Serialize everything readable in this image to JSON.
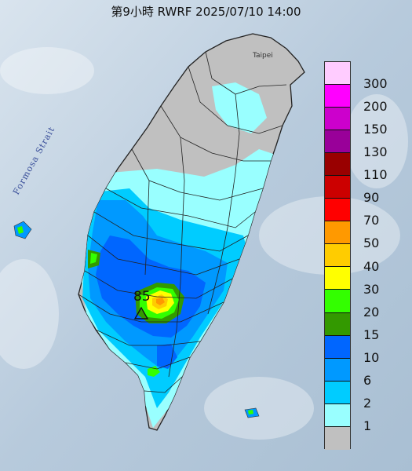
{
  "title": "第9小時  RWRF 2025/07/10 14:00",
  "map": {
    "sea_label": "Formosa Strait",
    "city_label": "Taipei",
    "max_marker": {
      "value": "85",
      "icon": "triangle-outline-icon"
    }
  },
  "legend": {
    "items": [
      {
        "label": "300",
        "color": "#ffccff"
      },
      {
        "label": "200",
        "color": "#ff00ff"
      },
      {
        "label": "150",
        "color": "#cc00cc"
      },
      {
        "label": "130",
        "color": "#990099"
      },
      {
        "label": "110",
        "color": "#990000"
      },
      {
        "label": "90",
        "color": "#cc0000"
      },
      {
        "label": "70",
        "color": "#ff0000"
      },
      {
        "label": "50",
        "color": "#ff9900"
      },
      {
        "label": "40",
        "color": "#ffcc00"
      },
      {
        "label": "30",
        "color": "#ffff00"
      },
      {
        "label": "20",
        "color": "#33ff00"
      },
      {
        "label": "15",
        "color": "#339900"
      },
      {
        "label": "10",
        "color": "#0066ff"
      },
      {
        "label": "6",
        "color": "#0099ff"
      },
      {
        "label": "2",
        "color": "#00ccff"
      },
      {
        "label": "1",
        "color": "#99ffff"
      },
      {
        "label": "",
        "color": "#c0c0c0"
      }
    ]
  }
}
